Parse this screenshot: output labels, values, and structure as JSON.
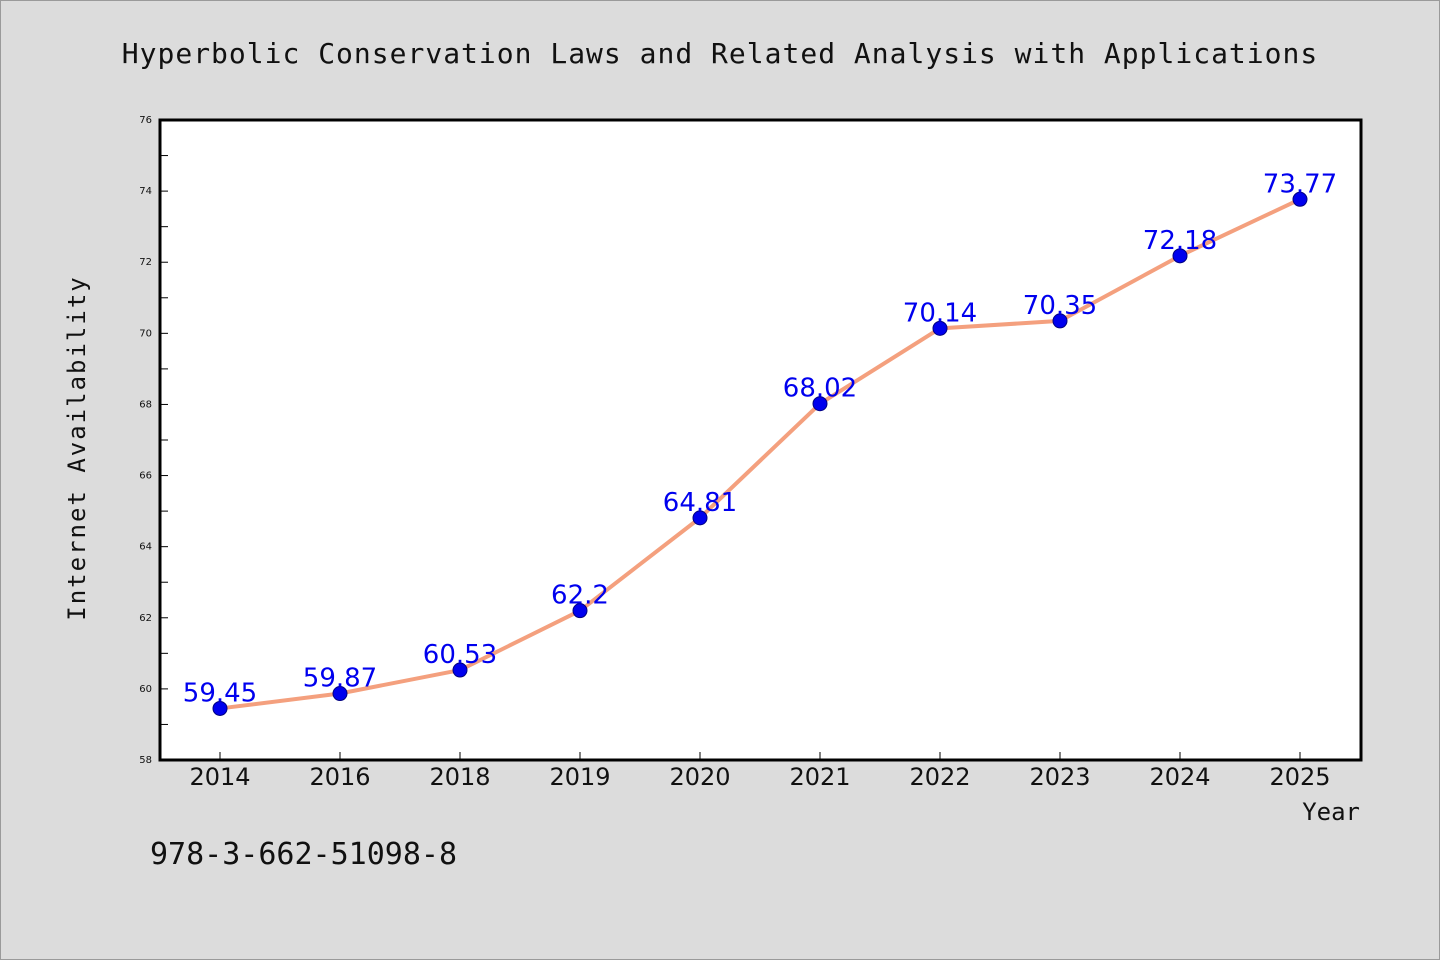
{
  "page": {
    "isbn": "978-3-662-51098-8"
  },
  "chart_data": {
    "type": "line",
    "title": "Hyperbolic Conservation Laws and Related Analysis with Applications",
    "xlabel": "Year",
    "ylabel": "Internet Availability",
    "categories": [
      "2014",
      "2016",
      "2018",
      "2019",
      "2020",
      "2021",
      "2022",
      "2023",
      "2024",
      "2025"
    ],
    "values": [
      59.45,
      59.87,
      60.53,
      62.2,
      64.81,
      68.02,
      70.14,
      70.35,
      72.18,
      73.77
    ],
    "value_labels": [
      "59.45",
      "59.87",
      "60.53",
      "62.2",
      "64.81",
      "68.02",
      "70.14",
      "70.35",
      "72.18",
      "73.77"
    ],
    "ylim": [
      58,
      76
    ],
    "yticks": [
      58,
      60,
      62,
      64,
      66,
      68,
      70,
      72,
      74,
      76
    ],
    "grid": false,
    "legend": "none",
    "colors": {
      "line": "#f4a07e",
      "marker": "#0000ee",
      "marker_edge": "#000080",
      "data_label": "#0000ee",
      "background": "#dcdcdc",
      "plot_area": "#ffffff"
    }
  }
}
